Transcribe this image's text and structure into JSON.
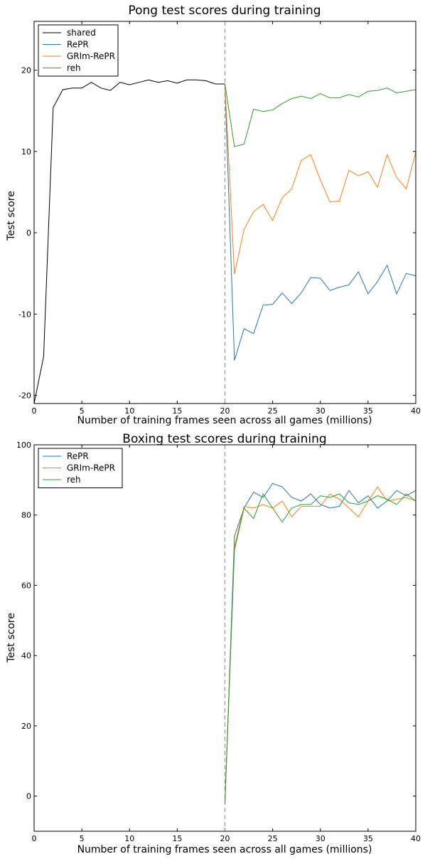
{
  "chart_data": [
    {
      "type": "line",
      "title": "Pong test scores during training",
      "xlabel": "Number of training frames seen across all games (millions)",
      "ylabel": "Test score",
      "xlim": [
        0,
        40
      ],
      "ylim": [
        -21,
        26
      ],
      "xticks": [
        0,
        5,
        10,
        15,
        20,
        25,
        30,
        35,
        40
      ],
      "yticks": [
        -20,
        -10,
        0,
        10,
        20
      ],
      "vline": {
        "x": 20,
        "color": "#999999",
        "style": "dashed"
      },
      "grid": false,
      "legend_position": "top-left",
      "series": [
        {
          "name": "shared",
          "color": "#000000",
          "x": [
            0,
            1,
            2,
            3,
            4,
            5,
            6,
            7,
            8,
            9,
            10,
            11,
            12,
            13,
            14,
            15,
            16,
            17,
            18,
            19,
            20
          ],
          "values": [
            -21.0,
            -15.2,
            15.4,
            17.6,
            17.8,
            17.8,
            18.5,
            17.8,
            17.5,
            18.5,
            18.2,
            18.5,
            18.8,
            18.5,
            18.7,
            18.4,
            18.8,
            18.8,
            18.7,
            18.3,
            18.3
          ]
        },
        {
          "name": "RePR",
          "color": "#1f77b4",
          "x": [
            20,
            21,
            22,
            23,
            24,
            25,
            26,
            27,
            28,
            29,
            30,
            31,
            32,
            33,
            34,
            35,
            36,
            37,
            38,
            39,
            40
          ],
          "values": [
            18.3,
            -15.7,
            -11.8,
            -12.4,
            -8.9,
            -8.8,
            -7.4,
            -8.7,
            -7.4,
            -5.5,
            -5.6,
            -7.1,
            -6.7,
            -6.4,
            -4.8,
            -7.5,
            -6.0,
            -4.0,
            -7.5,
            -5.0,
            -5.3
          ]
        },
        {
          "name": "GRIm-RePR",
          "color": "#ff7f0e",
          "x": [
            20,
            21,
            22,
            23,
            24,
            25,
            26,
            27,
            28,
            29,
            30,
            31,
            32,
            33,
            34,
            35,
            36,
            37,
            38,
            39,
            40
          ],
          "values": [
            18.3,
            -5.1,
            0.4,
            2.6,
            3.5,
            1.5,
            4.3,
            5.4,
            8.9,
            9.6,
            6.5,
            3.8,
            3.9,
            7.7,
            7.0,
            7.5,
            5.6,
            9.6,
            6.8,
            5.4,
            9.9
          ]
        },
        {
          "name": "reh",
          "color": "#2ca02c",
          "x": [
            20,
            21,
            22,
            23,
            24,
            25,
            26,
            27,
            28,
            29,
            30,
            31,
            32,
            33,
            34,
            35,
            36,
            37,
            38,
            39,
            40
          ],
          "values": [
            18.3,
            10.6,
            10.9,
            15.2,
            14.9,
            15.1,
            15.9,
            16.5,
            16.8,
            16.5,
            17.1,
            16.6,
            16.6,
            17.0,
            16.7,
            17.4,
            17.5,
            17.8,
            17.2,
            17.4,
            17.6
          ]
        }
      ]
    },
    {
      "type": "line",
      "title": "Boxing test scores during training",
      "xlabel": "Number of training frames seen across all games (millions)",
      "ylabel": "Test score",
      "xlim": [
        0,
        40
      ],
      "ylim": [
        -10,
        100
      ],
      "xticks": [
        0,
        5,
        10,
        15,
        20,
        25,
        30,
        35,
        40
      ],
      "yticks": [
        0,
        20,
        40,
        60,
        80,
        100
      ],
      "vline": {
        "x": 20,
        "color": "#999999",
        "style": "dashed"
      },
      "grid": false,
      "legend_position": "top-left",
      "series": [
        {
          "name": "RePR",
          "color": "#1f77b4",
          "x": [
            20,
            21,
            22,
            23,
            24,
            25,
            26,
            27,
            28,
            29,
            30,
            31,
            32,
            33,
            34,
            35,
            36,
            37,
            38,
            39,
            40
          ],
          "values": [
            -2,
            74,
            82,
            86.5,
            85,
            89,
            88,
            85,
            84,
            86,
            83,
            82,
            82.5,
            87,
            83.5,
            85.5,
            82,
            84,
            87,
            85.5,
            87
          ]
        },
        {
          "name": "GRIm-RePR",
          "color": "#ff7f0e",
          "x": [
            20,
            21,
            22,
            23,
            24,
            25,
            26,
            27,
            28,
            29,
            30,
            31,
            32,
            33,
            34,
            35,
            36,
            37,
            38,
            39,
            40
          ],
          "values": [
            -2,
            71,
            82.5,
            82,
            83,
            82,
            84,
            79.5,
            82.5,
            82.5,
            82.5,
            86,
            84.5,
            82,
            79.5,
            84,
            88,
            84,
            84.5,
            85,
            84
          ]
        },
        {
          "name": "reh",
          "color": "#2ca02c",
          "x": [
            20,
            21,
            22,
            23,
            24,
            25,
            26,
            27,
            28,
            29,
            30,
            31,
            32,
            33,
            34,
            35,
            36,
            37,
            38,
            39,
            40
          ],
          "values": [
            -2,
            70,
            82,
            79,
            86,
            82,
            78,
            82,
            83,
            83,
            85.5,
            85,
            86,
            83.5,
            83,
            84,
            85.5,
            84.5,
            83,
            86,
            84
          ]
        }
      ]
    }
  ]
}
